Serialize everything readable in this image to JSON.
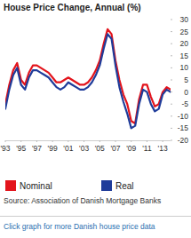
{
  "chart_data": {
    "type": "line",
    "title": "House Price Change, Annual (%)",
    "source": "Source: Association of Danish Mortgage Banks",
    "caption": "Click graph for more Danish house price data",
    "x": [
      1993.0,
      1993.5,
      1994.0,
      1994.5,
      1995.0,
      1995.5,
      1996.0,
      1996.5,
      1997.0,
      1997.5,
      1998.0,
      1998.5,
      1999.0,
      1999.5,
      2000.0,
      2000.5,
      2001.0,
      2001.5,
      2002.0,
      2002.5,
      2003.0,
      2003.5,
      2004.0,
      2004.5,
      2005.0,
      2005.5,
      2006.0,
      2006.5,
      2007.0,
      2007.5,
      2008.0,
      2008.5,
      2009.0,
      2009.5,
      2010.0,
      2010.5,
      2011.0,
      2011.5,
      2012.0,
      2012.5,
      2013.0,
      2013.5,
      2014.0
    ],
    "series": [
      {
        "name": "Nominal",
        "color": "#e3141c",
        "values": [
          -5,
          3,
          9,
          12,
          5,
          3,
          8,
          11,
          11,
          10,
          9,
          8,
          6,
          4,
          4,
          5,
          6,
          5,
          4,
          3,
          3,
          4,
          6,
          9,
          13,
          20,
          26,
          24,
          13,
          5,
          -1,
          -5,
          -12,
          -13,
          -3,
          3,
          3,
          -2,
          -6,
          -5,
          0,
          2,
          1
        ]
      },
      {
        "name": "Real",
        "color": "#1f3c9a",
        "values": [
          -7,
          1,
          7,
          10,
          3,
          1,
          6,
          9,
          9,
          8,
          7,
          6,
          4,
          2,
          1,
          2,
          4,
          3,
          2,
          1,
          1,
          2,
          4,
          7,
          11,
          18,
          24,
          22,
          11,
          2,
          -4,
          -9,
          -15,
          -14,
          -5,
          1,
          0,
          -5,
          -8,
          -7,
          -1,
          1,
          0
        ]
      }
    ],
    "xlim": [
      1993,
      2014
    ],
    "xticks": [
      {
        "value": 1993,
        "label": "'93"
      },
      {
        "value": 1995,
        "label": "'95"
      },
      {
        "value": 1997,
        "label": "'97"
      },
      {
        "value": 1999,
        "label": "'99"
      },
      {
        "value": 2001,
        "label": "'01"
      },
      {
        "value": 2003,
        "label": "'03"
      },
      {
        "value": 2005,
        "label": "'05"
      },
      {
        "value": 2007,
        "label": "'07"
      },
      {
        "value": 2009,
        "label": "'09"
      },
      {
        "value": 2011,
        "label": "'11"
      },
      {
        "value": 2013,
        "label": "'13"
      }
    ],
    "ylim": [
      -20,
      30
    ],
    "yticks": [
      30,
      25,
      20,
      15,
      10,
      5,
      0,
      -5,
      -10,
      -15,
      -20
    ],
    "grid": false,
    "legend": "bottom"
  }
}
